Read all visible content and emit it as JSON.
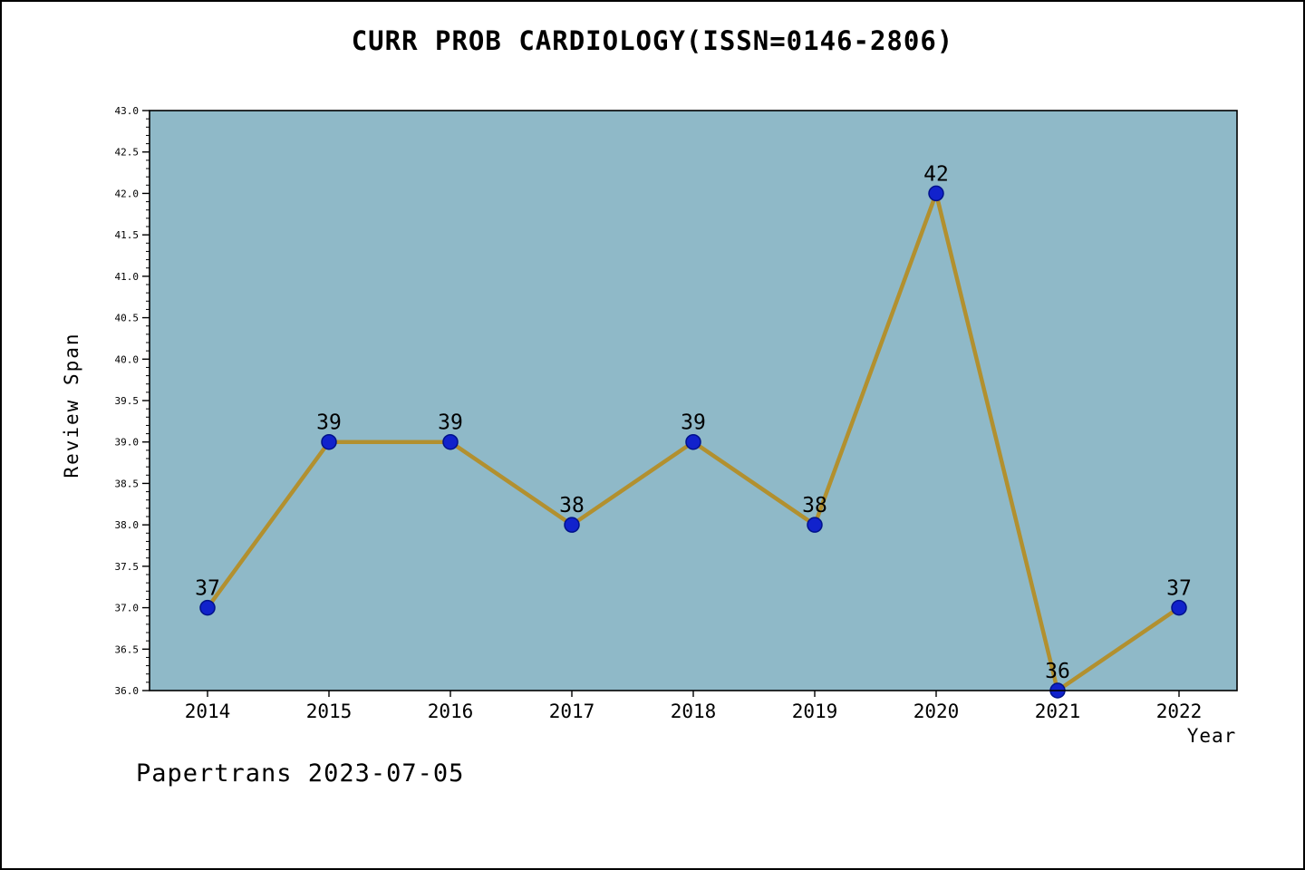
{
  "title": "CURR PROB CARDIOLOGY(ISSN=0146-2806)",
  "footer": "Papertrans 2023-07-05",
  "chart_data": {
    "type": "line",
    "title": "CURR PROB CARDIOLOGY(ISSN=0146-2806)",
    "x": [
      2014,
      2015,
      2016,
      2017,
      2018,
      2019,
      2020,
      2021,
      2022
    ],
    "values": [
      37,
      39,
      39,
      38,
      39,
      38,
      42,
      36,
      37
    ],
    "xlabel": "Year",
    "ylabel": "Review Span",
    "ylim": [
      36.0,
      43.0
    ],
    "ytick_step": 0.5,
    "y_minor_step": 0.1,
    "grid": false,
    "legend": "none",
    "colors": {
      "plot_bg": "#8fb9c8",
      "line": "#b2902f",
      "marker_fill": "#1122cc",
      "marker_edge": "#00128a",
      "frame": "#000000",
      "text": "#000000"
    }
  }
}
